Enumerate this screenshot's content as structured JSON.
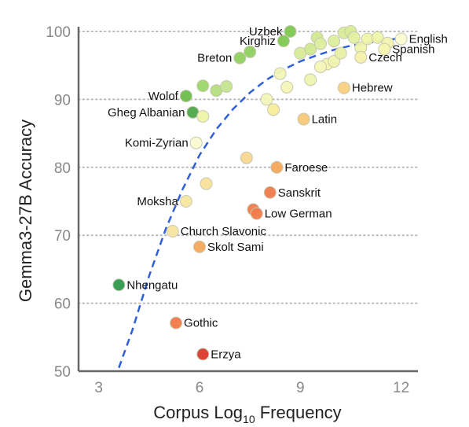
{
  "chart_data": {
    "type": "scatter",
    "title": "",
    "xlabel_main": "Corpus Log",
    "xlabel_sub": "10",
    "xlabel_end": " Frequency",
    "ylabel": "Gemma3-27B Accuracy",
    "xlim": [
      2.4,
      12.5
    ],
    "ylim": [
      50,
      100
    ],
    "x_ticks": [
      3,
      6,
      9,
      12
    ],
    "y_ticks": [
      50,
      60,
      70,
      80,
      90,
      100
    ],
    "grid": "horizontal dotted",
    "colors": {
      "trend": "#3060d8",
      "axis": "#666666",
      "grid": "#bbbbbb"
    },
    "trend_line": [
      {
        "x": 3.6,
        "y": 50.5
      },
      {
        "x": 4.0,
        "y": 56
      },
      {
        "x": 4.5,
        "y": 64
      },
      {
        "x": 5.0,
        "y": 71
      },
      {
        "x": 5.5,
        "y": 76.8
      },
      {
        "x": 6.0,
        "y": 81.8
      },
      {
        "x": 6.5,
        "y": 85.6
      },
      {
        "x": 7.0,
        "y": 88.6
      },
      {
        "x": 7.5,
        "y": 91
      },
      {
        "x": 8.0,
        "y": 92.9
      },
      {
        "x": 8.5,
        "y": 94.4
      },
      {
        "x": 9.0,
        "y": 95.6
      },
      {
        "x": 9.5,
        "y": 96.5
      },
      {
        "x": 10.0,
        "y": 97.3
      },
      {
        "x": 10.5,
        "y": 97.9
      },
      {
        "x": 11.0,
        "y": 98.3
      },
      {
        "x": 11.5,
        "y": 98.7
      },
      {
        "x": 12.0,
        "y": 99
      }
    ],
    "points": [
      {
        "x": 8.7,
        "y": 100,
        "color": "#7ec850",
        "label": "Uzbek",
        "label_pos": "left"
      },
      {
        "x": 8.5,
        "y": 98.6,
        "color": "#7ec850",
        "label": "Kirghiz",
        "label_pos": "left"
      },
      {
        "x": 7.5,
        "y": 97,
        "color": "#8fd060",
        "label": "",
        "label_pos": ""
      },
      {
        "x": 7.2,
        "y": 96.1,
        "color": "#8fd060",
        "label": "Breton",
        "label_pos": "left"
      },
      {
        "x": 5.6,
        "y": 90.5,
        "color": "#6cbe4c",
        "label": "Wolof",
        "label_pos": "left"
      },
      {
        "x": 5.8,
        "y": 88.1,
        "color": "#4ea84a",
        "label": "Gheg Albanian",
        "label_pos": "left"
      },
      {
        "x": 6.1,
        "y": 92,
        "color": "#9dd66a",
        "label": "",
        "label_pos": ""
      },
      {
        "x": 6.5,
        "y": 91.3,
        "color": "#b3dd80",
        "label": "",
        "label_pos": ""
      },
      {
        "x": 6.8,
        "y": 91.9,
        "color": "#c3e490",
        "label": "",
        "label_pos": ""
      },
      {
        "x": 6.1,
        "y": 87.5,
        "color": "#eef4a8",
        "label": "",
        "label_pos": ""
      },
      {
        "x": 5.9,
        "y": 83.6,
        "color": "#fafbd0",
        "label": "Komi-Zyrian",
        "label_pos": "left"
      },
      {
        "x": 7.4,
        "y": 81.4,
        "color": "#f8d890",
        "label": "",
        "label_pos": ""
      },
      {
        "x": 8.3,
        "y": 80,
        "color": "#f6a65a",
        "label": "Faroese",
        "label_pos": "right"
      },
      {
        "x": 6.2,
        "y": 77.6,
        "color": "#f8e098",
        "label": "",
        "label_pos": ""
      },
      {
        "x": 8.1,
        "y": 76.3,
        "color": "#f07a4a",
        "label": "Sanskrit",
        "label_pos": "right"
      },
      {
        "x": 5.6,
        "y": 75,
        "color": "#f7e6a0",
        "label": "Moksha",
        "label_pos": "left"
      },
      {
        "x": 7.6,
        "y": 73.8,
        "color": "#f07a4a",
        "label": "",
        "label_pos": ""
      },
      {
        "x": 7.7,
        "y": 73.2,
        "color": "#f07a4a",
        "label": "Low German",
        "label_pos": "right"
      },
      {
        "x": 5.2,
        "y": 70.6,
        "color": "#f7e4a0",
        "label": "Church Slavonic",
        "label_pos": "right"
      },
      {
        "x": 6.0,
        "y": 68.3,
        "color": "#f6a65a",
        "label": "Skolt Sami",
        "label_pos": "right"
      },
      {
        "x": 3.6,
        "y": 62.7,
        "color": "#2e9a4e",
        "label": "Nhengatu",
        "label_pos": "right"
      },
      {
        "x": 5.3,
        "y": 57.1,
        "color": "#f07a4a",
        "label": "Gothic",
        "label_pos": "right"
      },
      {
        "x": 6.1,
        "y": 52.5,
        "color": "#d93a2c",
        "label": "Erzya",
        "label_pos": "right"
      },
      {
        "x": 8.0,
        "y": 90,
        "color": "#f4f6b8",
        "label": "",
        "label_pos": ""
      },
      {
        "x": 8.2,
        "y": 88.5,
        "color": "#f8ec9c",
        "label": "",
        "label_pos": ""
      },
      {
        "x": 8.4,
        "y": 93.8,
        "color": "#f4f6b8",
        "label": "",
        "label_pos": ""
      },
      {
        "x": 8.6,
        "y": 91.8,
        "color": "#f4f6b8",
        "label": "",
        "label_pos": ""
      },
      {
        "x": 9.1,
        "y": 87.1,
        "color": "#f8c878",
        "label": "Latin",
        "label_pos": "right"
      },
      {
        "x": 9.3,
        "y": 92.9,
        "color": "#eef4b0",
        "label": "",
        "label_pos": ""
      },
      {
        "x": 9.0,
        "y": 96.8,
        "color": "#d8ec98",
        "label": "",
        "label_pos": ""
      },
      {
        "x": 9.3,
        "y": 97.4,
        "color": "#d0e890",
        "label": "",
        "label_pos": ""
      },
      {
        "x": 9.5,
        "y": 99.1,
        "color": "#d0e890",
        "label": "",
        "label_pos": ""
      },
      {
        "x": 9.6,
        "y": 98.2,
        "color": "#dcee9c",
        "label": "",
        "label_pos": ""
      },
      {
        "x": 9.8,
        "y": 95.2,
        "color": "#f4f4b0",
        "label": "",
        "label_pos": ""
      },
      {
        "x": 10.0,
        "y": 95.6,
        "color": "#f0f2ac",
        "label": "",
        "label_pos": ""
      },
      {
        "x": 10.2,
        "y": 96.8,
        "color": "#e8f0a4",
        "label": "",
        "label_pos": ""
      },
      {
        "x": 10.0,
        "y": 98.6,
        "color": "#dcee9c",
        "label": "",
        "label_pos": ""
      },
      {
        "x": 10.3,
        "y": 99.8,
        "color": "#d8ec98",
        "label": "",
        "label_pos": ""
      },
      {
        "x": 10.5,
        "y": 100,
        "color": "#d8ec98",
        "label": "",
        "label_pos": ""
      },
      {
        "x": 10.6,
        "y": 99.1,
        "color": "#e4f0a0",
        "label": "",
        "label_pos": ""
      },
      {
        "x": 10.8,
        "y": 97.6,
        "color": "#eef4a8",
        "label": "",
        "label_pos": ""
      },
      {
        "x": 10.8,
        "y": 96.2,
        "color": "#f6f0a8",
        "label": "Czech",
        "label_pos": "right"
      },
      {
        "x": 11.0,
        "y": 98.9,
        "color": "#eef4a8",
        "label": "",
        "label_pos": ""
      },
      {
        "x": 11.3,
        "y": 99.1,
        "color": "#eef4a8",
        "label": "",
        "label_pos": ""
      },
      {
        "x": 11.6,
        "y": 98.3,
        "color": "#f4f6b0",
        "label": "",
        "label_pos": ""
      },
      {
        "x": 11.5,
        "y": 97.4,
        "color": "#f4f6b0",
        "label": "Spanish",
        "label_pos": "right"
      },
      {
        "x": 12.0,
        "y": 98.9,
        "color": "#fafbd0",
        "label": "English",
        "label_pos": "right"
      },
      {
        "x": 10.3,
        "y": 91.7,
        "color": "#f8d080",
        "label": "Hebrew",
        "label_pos": "right"
      },
      {
        "x": 9.6,
        "y": 94.8,
        "color": "#f4f6b8",
        "label": "",
        "label_pos": ""
      }
    ]
  }
}
